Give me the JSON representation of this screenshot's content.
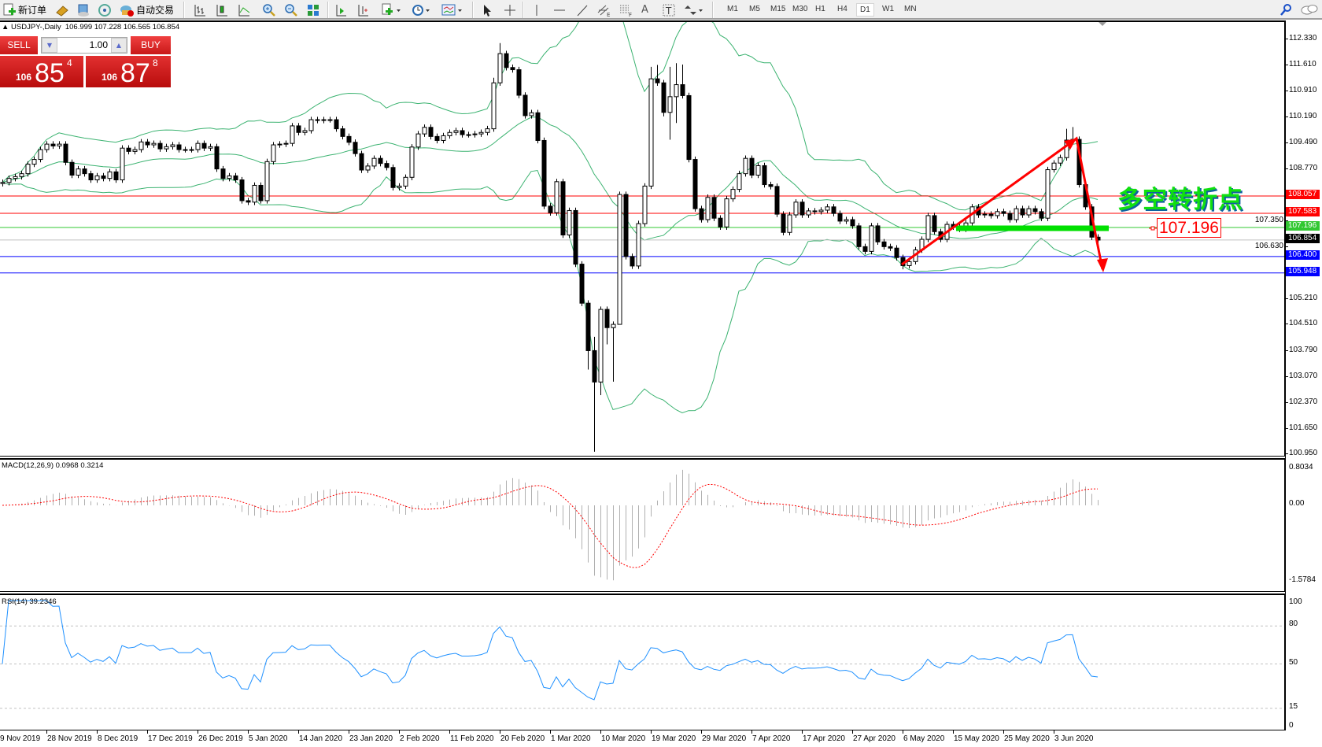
{
  "toolbar": {
    "new_order": "新订单",
    "auto_trading": "自动交易",
    "timeframes": [
      "M1",
      "M5",
      "M15",
      "M30",
      "H1",
      "H4",
      "D1",
      "W1",
      "MN"
    ],
    "active_timeframe": "D1",
    "icons": [
      "new-order-icon",
      "gold-bars-icon",
      "market-watch-icon",
      "signals-icon",
      "auto-trading-icon",
      "bar-chart-icon",
      "candlestick-icon",
      "line-chart-icon",
      "zoom-in-icon",
      "zoom-out-icon",
      "tile-windows-icon",
      "auto-scroll-icon",
      "chart-shift-icon",
      "indicators-icon",
      "periods-icon",
      "templates-icon",
      "cursor-icon",
      "crosshair-icon",
      "vertical-line-icon",
      "horizontal-line-icon",
      "trendline-icon",
      "equidistant-channel-icon",
      "fibonacci-icon",
      "text-icon",
      "text-label-icon",
      "arrows-icon",
      "search-icon",
      "chat-icon"
    ]
  },
  "chart": {
    "symbol_header": "USDJPY-,Daily",
    "ohlc": "106.999 107.228 106.565 106.854"
  },
  "trade_panel": {
    "sell_label": "SELL",
    "buy_label": "BUY",
    "lot": "1.00",
    "sell_price": {
      "prefix": "106",
      "big": "85",
      "sup": "4"
    },
    "buy_price": {
      "prefix": "106",
      "big": "87",
      "sup": "8"
    }
  },
  "price_axis": {
    "ticks": [
      112.33,
      111.61,
      110.91,
      110.19,
      109.49,
      108.77,
      107.35,
      106.63,
      105.21,
      104.51,
      103.79,
      103.07,
      102.37,
      101.65,
      100.95
    ],
    "tick_labels": [
      "112.330",
      "111.610",
      "110.910",
      "110.190",
      "109.490",
      "108.770",
      "107.350",
      "106.630",
      "105.210",
      "104.510",
      "103.790",
      "103.070",
      "102.370",
      "101.650",
      "100.950"
    ]
  },
  "levels": [
    {
      "price": 108.057,
      "label": "108.057",
      "color": "#ff0000",
      "line": "#ff0000"
    },
    {
      "price": 107.583,
      "label": "107.583",
      "color": "#ff0000",
      "line": "#ff0000"
    },
    {
      "price": 107.196,
      "label": "107.196",
      "color": "#32c832",
      "line": "#32c832"
    },
    {
      "price": 106.854,
      "label": "106.854",
      "color": "#000000",
      "line": "#c0c0c0"
    },
    {
      "price": 106.4,
      "label": "106.400",
      "color": "#0000ff",
      "line": "#0000ff"
    },
    {
      "price": 105.948,
      "label": "105.948",
      "color": "#0000ff",
      "line": "#0000ff"
    }
  ],
  "annotations": {
    "title": "多空转折点",
    "price_box": "107.196",
    "arrow_color": "#ff0000",
    "zone_color": "#00e000"
  },
  "macd": {
    "label": "MACD(12,26,9) 0.0968 0.3214",
    "ticks": [
      0.8034,
      0.0,
      -1.5784
    ],
    "tick_labels": [
      "0.8034",
      "0.00",
      "-1.5784"
    ]
  },
  "rsi": {
    "label": "RSI(14) 39.2346",
    "ticks": [
      100,
      80,
      50,
      15,
      0
    ],
    "tick_labels": [
      "100",
      "80",
      "50",
      "15",
      "0"
    ],
    "levels": [
      80,
      50,
      15
    ]
  },
  "date_axis": [
    "9 Nov 2019",
    "28 Nov 2019",
    "8 Dec 2019",
    "17 Dec 2019",
    "26 Dec 2019",
    "5 Jan 2020",
    "14 Jan 2020",
    "23 Jan 2020",
    "2 Feb 2020",
    "11 Feb 2020",
    "20 Feb 2020",
    "1 Mar 2020",
    "10 Mar 2020",
    "19 Mar 2020",
    "29 Mar 2020",
    "7 Apr 2020",
    "17 Apr 2020",
    "27 Apr 2020",
    "6 May 2020",
    "15 May 2020",
    "25 May 2020",
    "3 Jun 2020"
  ],
  "chart_data": {
    "type": "candlestick",
    "symbol": "USDJPY-",
    "timeframe": "Daily",
    "ylim": [
      100.95,
      112.33
    ],
    "bollinger_color": "#3cb371",
    "macd_signal_color": "#ff0000",
    "rsi_color": "#1e90ff",
    "close": [
      108.43,
      108.54,
      108.59,
      108.67,
      108.93,
      109.06,
      109.33,
      109.48,
      109.43,
      109.48,
      108.98,
      108.63,
      108.8,
      108.67,
      108.5,
      108.61,
      108.54,
      108.72,
      108.5,
      109.37,
      109.28,
      109.33,
      109.54,
      109.46,
      109.5,
      109.35,
      109.41,
      109.46,
      109.33,
      109.33,
      109.33,
      109.5,
      109.37,
      109.41,
      108.8,
      108.54,
      108.61,
      108.5,
      107.93,
      107.89,
      108.35,
      107.93,
      109.0,
      109.46,
      109.48,
      109.5,
      109.98,
      109.8,
      109.85,
      110.15,
      110.13,
      110.15,
      110.15,
      109.9,
      109.69,
      109.53,
      109.22,
      108.77,
      108.88,
      109.09,
      108.95,
      108.84,
      108.29,
      108.33,
      108.57,
      109.4,
      109.76,
      109.94,
      109.69,
      109.58,
      109.71,
      109.8,
      109.85,
      109.74,
      109.74,
      109.76,
      109.8,
      109.9,
      111.16,
      111.96,
      111.58,
      111.52,
      110.82,
      110.26,
      110.34,
      109.58,
      107.78,
      107.6,
      108.45,
      106.99,
      107.66,
      106.19,
      105.12,
      103.82,
      102.96,
      104.95,
      104.45,
      104.54,
      108.1,
      106.4,
      106.14,
      107.3,
      108.33,
      111.27,
      111.16,
      110.35,
      110.78,
      111.11,
      110.81,
      109.06,
      107.71,
      107.41,
      108.02,
      107.45,
      107.21,
      107.98,
      108.24,
      108.67,
      109.09,
      108.63,
      108.89,
      108.37,
      108.32,
      107.56,
      107.06,
      107.54,
      107.89,
      107.54,
      107.65,
      107.63,
      107.67,
      107.76,
      107.58,
      107.37,
      107.41,
      107.24,
      106.67,
      106.54,
      107.24,
      106.8,
      106.67,
      106.63,
      106.37,
      106.15,
      106.26,
      106.58,
      106.87,
      107.52,
      107.08,
      106.87,
      107.28,
      107.21,
      107.15,
      107.32,
      107.76,
      107.54,
      107.56,
      107.52,
      107.63,
      107.58,
      107.41,
      107.71,
      107.54,
      107.71,
      107.63,
      107.45,
      108.78,
      108.96,
      109.11,
      109.59,
      109.61,
      108.37,
      107.76,
      106.93,
      106.85
    ],
    "high": {
      "78": 111.3,
      "79": 112.25,
      "103": 111.6,
      "104": 111.65,
      "106": 111.6,
      "107": 111.7,
      "108": 111.66,
      "94": 104.2,
      "169": 109.9,
      "170": 109.95
    },
    "low": {
      "93": 103.3,
      "94": 101.05,
      "95": 102.6,
      "96": 103.99,
      "97": 102.97,
      "98": 104.6,
      "105": 110.24,
      "106": 109.6,
      "107": 110.06,
      "143": 106.05
    }
  }
}
